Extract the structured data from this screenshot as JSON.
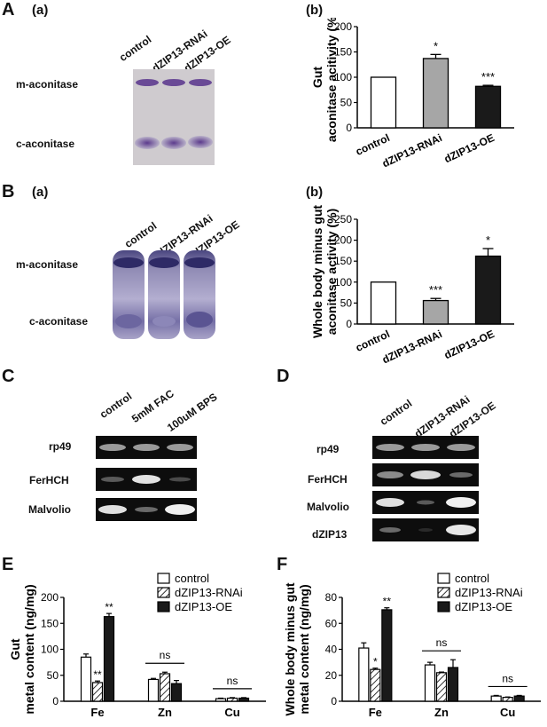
{
  "panels": {
    "A": {
      "letter": "A",
      "a": {
        "sublabel": "(a)",
        "lanes": [
          "control",
          "dZIP13-RNAi",
          "dZIP13-OE"
        ],
        "bands": [
          "m-aconitase",
          "c-aconitase"
        ]
      },
      "b": {
        "sublabel": "(b)"
      }
    },
    "B": {
      "letter": "B",
      "a": {
        "sublabel": "(a)",
        "lanes": [
          "control",
          "dZIP13-RNAi",
          "dZIP13-OE"
        ],
        "bands": [
          "m-aconitase",
          "c-aconitase"
        ]
      },
      "b": {
        "sublabel": "(b)"
      }
    },
    "C": {
      "letter": "C",
      "lanes": [
        "control",
        "5mM FAC",
        "100uM BPS"
      ],
      "rows": [
        "rp49",
        "FerHCH",
        "Malvolio"
      ]
    },
    "D": {
      "letter": "D",
      "lanes": [
        "control",
        "dZIP13-RNAi",
        "dZIP13-OE"
      ],
      "rows": [
        "rp49",
        "FerHCH",
        "Malvolio",
        "dZIP13"
      ]
    },
    "E": {
      "letter": "E"
    },
    "F": {
      "letter": "F"
    }
  },
  "chart_data": [
    {
      "id": "A-b",
      "type": "bar",
      "ylabel": [
        "Gut",
        "aconitase acitivity (%)"
      ],
      "categories": [
        "control",
        "dZIP13-RNAi",
        "dZIP13-OE"
      ],
      "values": [
        100,
        137,
        82
      ],
      "errors": [
        0,
        8,
        2
      ],
      "annotations": [
        "",
        "*",
        "***"
      ],
      "bar_colors": [
        "#ffffff",
        "#a6a6a6",
        "#1a1a1a"
      ],
      "ylim": [
        0,
        200
      ],
      "yticks": [
        0,
        50,
        100,
        150,
        200
      ]
    },
    {
      "id": "B-b",
      "type": "bar",
      "ylabel": [
        "Whole body minus gut",
        "aconitase activity (%)"
      ],
      "categories": [
        "control",
        "dZIP13-RNAi",
        "dZIP13-OE"
      ],
      "values": [
        100,
        56,
        162
      ],
      "errors": [
        0,
        5,
        18
      ],
      "annotations": [
        "",
        "***",
        "*"
      ],
      "bar_colors": [
        "#ffffff",
        "#a6a6a6",
        "#1a1a1a"
      ],
      "ylim": [
        0,
        250
      ],
      "yticks": [
        0,
        50,
        100,
        150,
        200,
        250
      ]
    },
    {
      "id": "E",
      "type": "bar",
      "ylabel": [
        "Gut",
        "metal content (ng/mg)"
      ],
      "categories": [
        "Fe",
        "Zn",
        "Cu"
      ],
      "series": [
        {
          "name": "control",
          "values": [
            85,
            42,
            5
          ],
          "errors": [
            6,
            2,
            1
          ]
        },
        {
          "name": "dZIP13-RNAi",
          "values": [
            36,
            53,
            6
          ],
          "errors": [
            3,
            3,
            1
          ]
        },
        {
          "name": "dZIP13-OE",
          "values": [
            163,
            34,
            6
          ],
          "errors": [
            6,
            6,
            1
          ]
        }
      ],
      "annotations": [
        [
          "",
          "**",
          "**"
        ],
        [
          "",
          "",
          ""
        ],
        [
          "",
          "",
          ""
        ]
      ],
      "groupnotes": [
        "",
        "ns",
        "ns"
      ],
      "ylim": [
        0,
        200
      ],
      "yticks": [
        0,
        50,
        100,
        150,
        200
      ]
    },
    {
      "id": "F",
      "type": "bar",
      "ylabel": [
        "Whole body minus gut",
        "metal content (ng/mg)"
      ],
      "categories": [
        "Fe",
        "Zn",
        "Cu"
      ],
      "series": [
        {
          "name": "control",
          "values": [
            41,
            28,
            4
          ],
          "errors": [
            4,
            2,
            0.5
          ]
        },
        {
          "name": "dZIP13-RNAi",
          "values": [
            24.5,
            22,
            3
          ],
          "errors": [
            1,
            0.5,
            0.3
          ]
        },
        {
          "name": "dZIP13-OE",
          "values": [
            70.5,
            26,
            4
          ],
          "errors": [
            1.5,
            6,
            0.5
          ]
        }
      ],
      "annotations": [
        [
          "",
          "*",
          "**"
        ],
        [
          "",
          "",
          ""
        ],
        [
          "",
          "",
          ""
        ]
      ],
      "groupnotes": [
        "",
        "ns",
        "ns"
      ],
      "ylim": [
        0,
        80
      ],
      "yticks": [
        0,
        20,
        40,
        60,
        80
      ]
    }
  ]
}
